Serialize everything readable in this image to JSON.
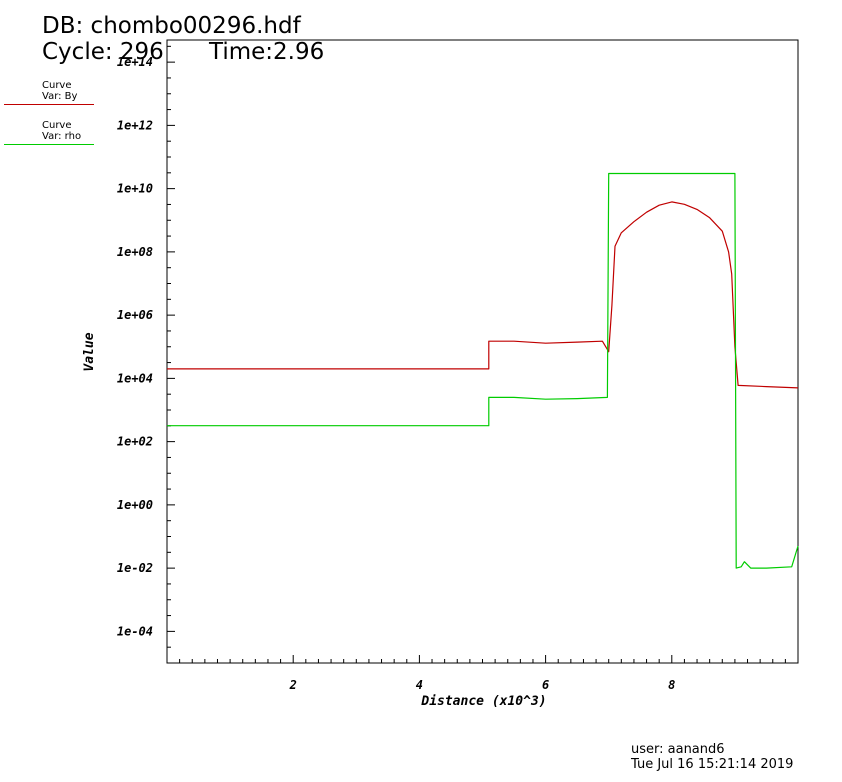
{
  "header": {
    "db_label": "DB: chombo00296.hdf",
    "cycle_label": "Cycle: 296",
    "time_label": "Time:2.96"
  },
  "legend": [
    {
      "line1": "Curve",
      "line2": "Var: By",
      "color": "#c00000"
    },
    {
      "line1": "Curve",
      "line2": "Var: rho",
      "color": "#00cc00"
    }
  ],
  "footer": {
    "user": "user: aanand6",
    "timestamp": "Tue Jul 16 15:21:14 2019"
  },
  "chart_data": {
    "type": "line",
    "xlabel": "Distance (x10^3)",
    "ylabel": "Value",
    "xlim": [
      0,
      10
    ],
    "ylim_log10": [
      -5,
      14.7
    ],
    "yscale": "log",
    "x_ticks": [
      2,
      4,
      6,
      8
    ],
    "x_tick_labels": [
      "2",
      "4",
      "6",
      "8"
    ],
    "y_ticks_log10": [
      -4,
      -2,
      0,
      2,
      4,
      6,
      8,
      10,
      12,
      14
    ],
    "y_tick_labels": [
      "1e-04",
      "1e-02",
      "1e+00",
      "1e+02",
      "1e+04",
      "1e+06",
      "1e+08",
      "1e+10",
      "1e+12",
      "1e+14"
    ],
    "series": [
      {
        "name": "By",
        "color": "#c00000",
        "x": [
          0,
          5.1,
          5.1,
          5.5,
          6.0,
          6.5,
          6.9,
          7.0,
          7.05,
          7.1,
          7.2,
          7.4,
          7.6,
          7.8,
          8.0,
          8.2,
          8.4,
          8.6,
          8.8,
          8.9,
          8.95,
          9.0,
          9.05,
          9.5,
          10.0
        ],
        "y": [
          20000.0,
          20000.0,
          150000.0,
          150000.0,
          130000.0,
          140000.0,
          150000.0,
          70000.0,
          2000000.0,
          150000000.0,
          400000000.0,
          900000000.0,
          1800000000.0,
          3000000000.0,
          3800000000.0,
          3200000000.0,
          2200000000.0,
          1200000000.0,
          450000000.0,
          100000000.0,
          20000000.0,
          100000.0,
          6000.0,
          5500.0,
          5000.0
        ]
      },
      {
        "name": "rho",
        "color": "#00cc00",
        "x": [
          0,
          5.1,
          5.1,
          5.5,
          6.0,
          6.5,
          6.98,
          7.0,
          9.0,
          9.02,
          9.1,
          9.15,
          9.25,
          9.5,
          9.9,
          10.0
        ],
        "y": [
          320,
          320,
          2500,
          2500,
          2200,
          2300,
          2500,
          30000000000.0,
          30000000000.0,
          0.01,
          0.011,
          0.016,
          0.01,
          0.01,
          0.011,
          0.05
        ]
      }
    ]
  }
}
